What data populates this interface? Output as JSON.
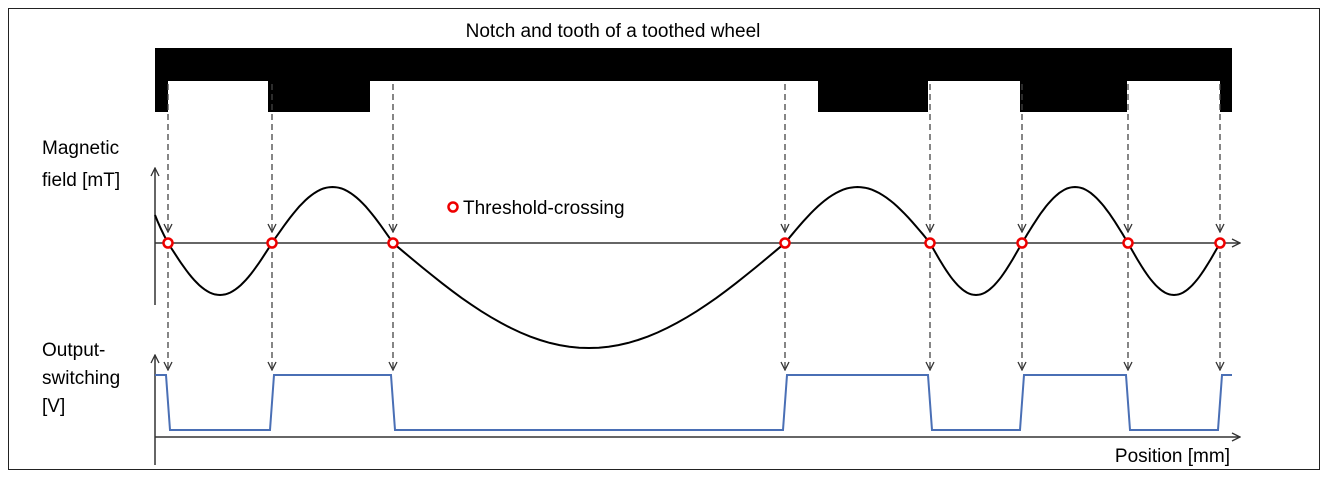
{
  "title": "Notch and tooth of a toothed wheel",
  "magnetic_label": [
    "Magnetic",
    "field [mT]"
  ],
  "legend": "Threshold-crossing",
  "output_label": [
    "Output-",
    "switching",
    "[V]"
  ],
  "x_axis_label": "Position [mm]"
}
